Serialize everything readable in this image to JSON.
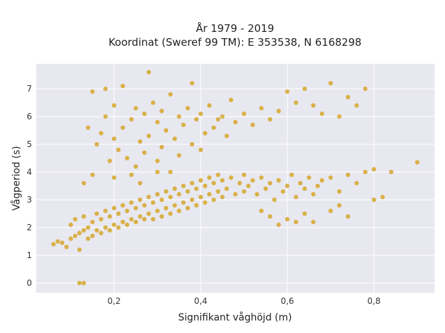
{
  "chart_data": {
    "type": "scatter",
    "title_line1": "År 1979 - 2019",
    "title_line2": "Koordinat (Sweref 99 TM): E 353538, N 6168298",
    "xlabel": "Signifikant våghöjd (m)",
    "ylabel": "Vågperiod (s)",
    "xlim": [
      0.02,
      0.94
    ],
    "ylim": [
      -0.35,
      7.9
    ],
    "xticks": [
      0.2,
      0.4,
      0.6,
      0.8
    ],
    "xtick_labels": [
      "0,2",
      "0,4",
      "0,6",
      "0,8"
    ],
    "yticks": [
      0,
      1,
      2,
      3,
      4,
      5,
      6,
      7
    ],
    "ytick_labels": [
      "0",
      "1",
      "2",
      "3",
      "4",
      "5",
      "6",
      "7"
    ],
    "grid": true,
    "plot_background": "#e8e8f0",
    "point_color": "#d4a321",
    "points": [
      [
        0.06,
        1.4
      ],
      [
        0.07,
        1.5
      ],
      [
        0.08,
        1.45
      ],
      [
        0.09,
        1.3
      ],
      [
        0.1,
        1.6
      ],
      [
        0.1,
        2.1
      ],
      [
        0.11,
        1.7
      ],
      [
        0.11,
        2.3
      ],
      [
        0.12,
        1.8
      ],
      [
        0.12,
        1.2
      ],
      [
        0.13,
        1.9
      ],
      [
        0.13,
        2.4
      ],
      [
        0.14,
        2.0
      ],
      [
        0.14,
        1.6
      ],
      [
        0.15,
        2.2
      ],
      [
        0.15,
        1.7
      ],
      [
        0.16,
        2.5
      ],
      [
        0.16,
        1.9
      ],
      [
        0.17,
        2.3
      ],
      [
        0.17,
        1.8
      ],
      [
        0.18,
        2.6
      ],
      [
        0.18,
        2.0
      ],
      [
        0.19,
        2.4
      ],
      [
        0.19,
        1.9
      ],
      [
        0.2,
        2.7
      ],
      [
        0.2,
        2.1
      ],
      [
        0.21,
        2.5
      ],
      [
        0.21,
        2.0
      ],
      [
        0.22,
        2.8
      ],
      [
        0.22,
        2.2
      ],
      [
        0.23,
        2.6
      ],
      [
        0.23,
        2.1
      ],
      [
        0.24,
        2.9
      ],
      [
        0.24,
        2.3
      ],
      [
        0.25,
        2.7
      ],
      [
        0.25,
        2.2
      ],
      [
        0.26,
        3.0
      ],
      [
        0.26,
        2.4
      ],
      [
        0.27,
        2.8
      ],
      [
        0.27,
        2.3
      ],
      [
        0.28,
        3.1
      ],
      [
        0.28,
        2.5
      ],
      [
        0.29,
        2.9
      ],
      [
        0.29,
        2.3
      ],
      [
        0.3,
        3.2
      ],
      [
        0.3,
        2.6
      ],
      [
        0.31,
        3.0
      ],
      [
        0.31,
        2.4
      ],
      [
        0.32,
        3.3
      ],
      [
        0.32,
        2.7
      ],
      [
        0.33,
        3.1
      ],
      [
        0.33,
        2.5
      ],
      [
        0.34,
        3.4
      ],
      [
        0.34,
        2.8
      ],
      [
        0.35,
        3.2
      ],
      [
        0.35,
        2.6
      ],
      [
        0.36,
        3.5
      ],
      [
        0.36,
        2.9
      ],
      [
        0.37,
        3.3
      ],
      [
        0.37,
        2.7
      ],
      [
        0.38,
        3.6
      ],
      [
        0.38,
        3.0
      ],
      [
        0.39,
        3.4
      ],
      [
        0.39,
        2.8
      ],
      [
        0.4,
        3.7
      ],
      [
        0.4,
        3.1
      ],
      [
        0.41,
        3.5
      ],
      [
        0.41,
        2.9
      ],
      [
        0.42,
        3.8
      ],
      [
        0.42,
        3.2
      ],
      [
        0.43,
        3.6
      ],
      [
        0.43,
        3.0
      ],
      [
        0.44,
        3.9
      ],
      [
        0.44,
        3.3
      ],
      [
        0.45,
        3.7
      ],
      [
        0.45,
        3.1
      ],
      [
        0.46,
        3.4
      ],
      [
        0.47,
        3.8
      ],
      [
        0.48,
        3.2
      ],
      [
        0.49,
        3.6
      ],
      [
        0.5,
        3.9
      ],
      [
        0.5,
        3.3
      ],
      [
        0.51,
        3.5
      ],
      [
        0.52,
        3.7
      ],
      [
        0.53,
        3.2
      ],
      [
        0.54,
        3.8
      ],
      [
        0.55,
        3.4
      ],
      [
        0.56,
        3.6
      ],
      [
        0.57,
        3.0
      ],
      [
        0.58,
        3.7
      ],
      [
        0.59,
        3.3
      ],
      [
        0.6,
        3.5
      ],
      [
        0.61,
        3.9
      ],
      [
        0.62,
        3.1
      ],
      [
        0.63,
        3.6
      ],
      [
        0.64,
        3.4
      ],
      [
        0.65,
        3.8
      ],
      [
        0.66,
        3.2
      ],
      [
        0.67,
        3.5
      ],
      [
        0.68,
        3.7
      ],
      [
        0.7,
        3.8
      ],
      [
        0.72,
        3.3
      ],
      [
        0.74,
        3.9
      ],
      [
        0.76,
        3.6
      ],
      [
        0.78,
        4.0
      ],
      [
        0.8,
        4.1
      ],
      [
        0.84,
        4.0
      ],
      [
        0.9,
        4.35
      ],
      [
        0.8,
        3.0
      ],
      [
        0.82,
        3.1
      ],
      [
        0.62,
        2.2
      ],
      [
        0.6,
        2.3
      ],
      [
        0.58,
        2.1
      ],
      [
        0.64,
        2.5
      ],
      [
        0.7,
        2.6
      ],
      [
        0.74,
        2.4
      ],
      [
        0.72,
        2.8
      ],
      [
        0.66,
        2.2
      ],
      [
        0.56,
        2.4
      ],
      [
        0.54,
        2.6
      ],
      [
        0.14,
        5.6
      ],
      [
        0.15,
        6.9
      ],
      [
        0.16,
        5.0
      ],
      [
        0.17,
        5.4
      ],
      [
        0.18,
        7.0
      ],
      [
        0.18,
        6.0
      ],
      [
        0.19,
        4.4
      ],
      [
        0.2,
        5.2
      ],
      [
        0.2,
        6.4
      ],
      [
        0.21,
        4.8
      ],
      [
        0.22,
        7.1
      ],
      [
        0.22,
        5.6
      ],
      [
        0.23,
        4.5
      ],
      [
        0.24,
        5.9
      ],
      [
        0.25,
        6.3
      ],
      [
        0.25,
        4.2
      ],
      [
        0.26,
        5.1
      ],
      [
        0.27,
        6.1
      ],
      [
        0.27,
        4.7
      ],
      [
        0.28,
        7.6
      ],
      [
        0.28,
        5.3
      ],
      [
        0.29,
        6.5
      ],
      [
        0.3,
        4.4
      ],
      [
        0.3,
        5.8
      ],
      [
        0.31,
        6.2
      ],
      [
        0.31,
        4.9
      ],
      [
        0.32,
        5.5
      ],
      [
        0.33,
        6.8
      ],
      [
        0.33,
        4.0
      ],
      [
        0.34,
        5.2
      ],
      [
        0.35,
        6.0
      ],
      [
        0.35,
        4.6
      ],
      [
        0.36,
        5.7
      ],
      [
        0.37,
        6.3
      ],
      [
        0.38,
        5.0
      ],
      [
        0.38,
        7.2
      ],
      [
        0.39,
        5.9
      ],
      [
        0.4,
        6.1
      ],
      [
        0.4,
        4.8
      ],
      [
        0.41,
        5.4
      ],
      [
        0.42,
        6.4
      ],
      [
        0.43,
        5.6
      ],
      [
        0.44,
        5.9
      ],
      [
        0.45,
        6.0
      ],
      [
        0.46,
        5.3
      ],
      [
        0.47,
        6.6
      ],
      [
        0.48,
        5.8
      ],
      [
        0.5,
        6.1
      ],
      [
        0.52,
        5.7
      ],
      [
        0.54,
        6.3
      ],
      [
        0.56,
        5.9
      ],
      [
        0.58,
        6.2
      ],
      [
        0.6,
        6.9
      ],
      [
        0.62,
        6.5
      ],
      [
        0.64,
        7.0
      ],
      [
        0.66,
        6.4
      ],
      [
        0.68,
        6.1
      ],
      [
        0.7,
        7.2
      ],
      [
        0.72,
        6.0
      ],
      [
        0.74,
        6.7
      ],
      [
        0.76,
        6.4
      ],
      [
        0.78,
        7.0
      ],
      [
        0.12,
        0.0
      ],
      [
        0.13,
        0.0
      ],
      [
        0.13,
        3.6
      ],
      [
        0.15,
        3.9
      ],
      [
        0.2,
        3.8
      ],
      [
        0.24,
        3.9
      ],
      [
        0.26,
        3.6
      ],
      [
        0.3,
        4.0
      ]
    ]
  }
}
